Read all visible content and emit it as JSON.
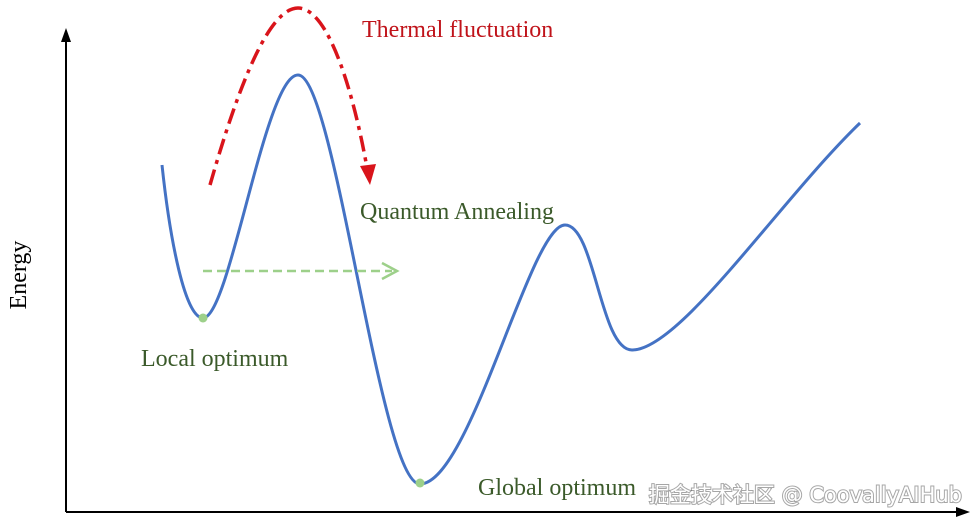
{
  "axis": {
    "y_label": "Energy"
  },
  "annotations": {
    "thermal": "Thermal fluctuation",
    "quantum": "Quantum Annealing",
    "local": "Local optimum",
    "global": "Global optimum"
  },
  "watermark": "掘金技术社区 @ CoovallyAIHub"
}
